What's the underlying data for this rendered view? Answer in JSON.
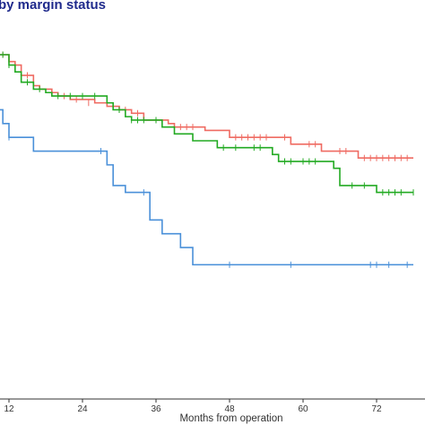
{
  "title": "by margin status",
  "chart_data": {
    "type": "line",
    "subtype": "kaplan-meier",
    "xlabel": "Months from operation",
    "ylabel": "",
    "xlim": [
      10,
      78
    ],
    "ylim": [
      0,
      1
    ],
    "x_ticks": [
      12,
      24,
      36,
      48,
      60,
      72
    ],
    "grid": false,
    "legend": "none",
    "series": [
      {
        "color": "#ef6b62",
        "steps": [
          [
            10,
            1.0
          ],
          [
            12,
            0.98
          ],
          [
            13,
            0.97
          ],
          [
            14,
            0.94
          ],
          [
            16,
            0.91
          ],
          [
            17,
            0.9
          ],
          [
            19,
            0.89
          ],
          [
            20,
            0.88
          ],
          [
            22,
            0.87
          ],
          [
            26,
            0.86
          ],
          [
            28,
            0.85
          ],
          [
            30,
            0.84
          ],
          [
            32,
            0.83
          ],
          [
            34,
            0.81
          ],
          [
            38,
            0.8
          ],
          [
            39,
            0.79
          ],
          [
            44,
            0.78
          ],
          [
            48,
            0.76
          ],
          [
            58,
            0.74
          ],
          [
            63,
            0.72
          ],
          [
            69,
            0.7
          ],
          [
            78,
            0.7
          ]
        ],
        "censored": [
          [
            10,
            1.0
          ],
          [
            11,
            1.0
          ],
          [
            15,
            0.94
          ],
          [
            21,
            0.88
          ],
          [
            23,
            0.87
          ],
          [
            25,
            0.86
          ],
          [
            31,
            0.84
          ],
          [
            33,
            0.83
          ],
          [
            36,
            0.81
          ],
          [
            40,
            0.79
          ],
          [
            41,
            0.79
          ],
          [
            42,
            0.79
          ],
          [
            49,
            0.76
          ],
          [
            50,
            0.76
          ],
          [
            51,
            0.76
          ],
          [
            52,
            0.76
          ],
          [
            53,
            0.76
          ],
          [
            54,
            0.76
          ],
          [
            57,
            0.76
          ],
          [
            61,
            0.74
          ],
          [
            62,
            0.74
          ],
          [
            66,
            0.72
          ],
          [
            67,
            0.72
          ],
          [
            70,
            0.7
          ],
          [
            71,
            0.7
          ],
          [
            72,
            0.7
          ],
          [
            73,
            0.7
          ],
          [
            74,
            0.7
          ],
          [
            75,
            0.7
          ],
          [
            76,
            0.7
          ],
          [
            77,
            0.7
          ]
        ]
      },
      {
        "color": "#22aa22",
        "steps": [
          [
            10,
            1.0
          ],
          [
            12,
            0.97
          ],
          [
            13,
            0.95
          ],
          [
            14,
            0.92
          ],
          [
            16,
            0.9
          ],
          [
            18,
            0.89
          ],
          [
            19,
            0.88
          ],
          [
            28,
            0.86
          ],
          [
            29,
            0.84
          ],
          [
            31,
            0.82
          ],
          [
            32,
            0.81
          ],
          [
            37,
            0.79
          ],
          [
            39,
            0.77
          ],
          [
            42,
            0.75
          ],
          [
            46,
            0.73
          ],
          [
            55,
            0.71
          ],
          [
            56,
            0.69
          ],
          [
            65,
            0.67
          ],
          [
            66,
            0.62
          ],
          [
            72,
            0.6
          ],
          [
            78,
            0.6
          ]
        ],
        "censored": [
          [
            10,
            1.0
          ],
          [
            11,
            1.0
          ],
          [
            12,
            0.97
          ],
          [
            15,
            0.92
          ],
          [
            17,
            0.9
          ],
          [
            20,
            0.88
          ],
          [
            22,
            0.88
          ],
          [
            24,
            0.88
          ],
          [
            26,
            0.88
          ],
          [
            30,
            0.84
          ],
          [
            32,
            0.81
          ],
          [
            33,
            0.81
          ],
          [
            34,
            0.81
          ],
          [
            36,
            0.81
          ],
          [
            47,
            0.73
          ],
          [
            49,
            0.73
          ],
          [
            52,
            0.73
          ],
          [
            53,
            0.73
          ],
          [
            57,
            0.69
          ],
          [
            58,
            0.69
          ],
          [
            60,
            0.69
          ],
          [
            61,
            0.69
          ],
          [
            62,
            0.69
          ],
          [
            68,
            0.62
          ],
          [
            70,
            0.62
          ],
          [
            73,
            0.6
          ],
          [
            74,
            0.6
          ],
          [
            75,
            0.6
          ],
          [
            76,
            0.6
          ],
          [
            78,
            0.6
          ]
        ]
      },
      {
        "color": "#4a90d9",
        "steps": [
          [
            10,
            0.84
          ],
          [
            11,
            0.8
          ],
          [
            12,
            0.76
          ],
          [
            16,
            0.72
          ],
          [
            28,
            0.68
          ],
          [
            29,
            0.62
          ],
          [
            31,
            0.6
          ],
          [
            35,
            0.52
          ],
          [
            37,
            0.48
          ],
          [
            40,
            0.44
          ],
          [
            42,
            0.39
          ],
          [
            78,
            0.39
          ]
        ],
        "censored": [
          [
            10,
            0.84
          ],
          [
            12,
            0.76
          ],
          [
            27,
            0.72
          ],
          [
            34,
            0.6
          ],
          [
            48,
            0.39
          ],
          [
            58,
            0.39
          ],
          [
            71,
            0.39
          ],
          [
            72,
            0.39
          ],
          [
            74,
            0.39
          ],
          [
            77,
            0.39
          ]
        ]
      }
    ]
  }
}
